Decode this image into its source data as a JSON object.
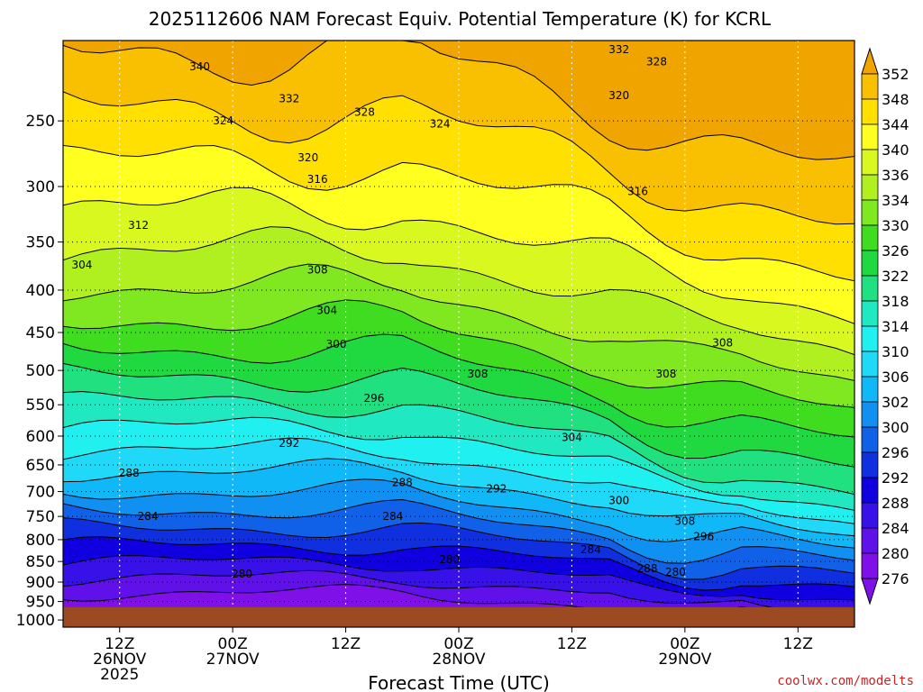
{
  "chart_data": {
    "type": "heatmap",
    "title": "2025112606 NAM Forecast Equiv. Potential Temperature (K) for KCRL",
    "xlabel": "Forecast Time (UTC)",
    "ylabel": "",
    "y_ticks": [
      "250",
      "300",
      "350",
      "400",
      "450",
      "500",
      "550",
      "600",
      "650",
      "700",
      "750",
      "800",
      "850",
      "900",
      "950",
      "1000"
    ],
    "x_ticks": [
      {
        "hour": 6,
        "label": "12Z",
        "date": "26NOV",
        "year": "2025"
      },
      {
        "hour": 18,
        "label": "00Z",
        "date": "27NOV",
        "year": ""
      },
      {
        "hour": 30,
        "label": "12Z",
        "date": "",
        "year": ""
      },
      {
        "hour": 42,
        "label": "00Z",
        "date": "28NOV",
        "year": ""
      },
      {
        "hour": 54,
        "label": "12Z",
        "date": "",
        "year": ""
      },
      {
        "hour": 66,
        "label": "00Z",
        "date": "29NOV",
        "year": ""
      },
      {
        "hour": 78,
        "label": "12Z",
        "date": "",
        "year": ""
      }
    ],
    "xlim": [
      0,
      84
    ],
    "ylim_hpa": [
      1020,
      200
    ],
    "surface_hpa": 965,
    "colorbar": {
      "levels": [
        "352",
        "348",
        "344",
        "340",
        "336",
        "334",
        "330",
        "326",
        "322",
        "318",
        "314",
        "310",
        "306",
        "302",
        "300",
        "296",
        "292",
        "288",
        "284",
        "280",
        "276"
      ],
      "colors": [
        "#f0a400",
        "#f8c000",
        "#ffe000",
        "#ffff20",
        "#d8f820",
        "#b0f020",
        "#80e820",
        "#40dc20",
        "#20d840",
        "#20e080",
        "#20e8c0",
        "#20f0f0",
        "#20d8f8",
        "#10b8f8",
        "#1090f0",
        "#1060e8",
        "#1030e0",
        "#1000e0",
        "#3810e8",
        "#6010e8",
        "#8010e8"
      ]
    },
    "contour_labels": [
      {
        "text": "340",
        "h": 14.5,
        "p": 215
      },
      {
        "text": "332",
        "h": 59,
        "p": 205
      },
      {
        "text": "328",
        "h": 63,
        "p": 212
      },
      {
        "text": "332",
        "h": 24,
        "p": 235
      },
      {
        "text": "328",
        "h": 32,
        "p": 244
      },
      {
        "text": "324",
        "h": 17,
        "p": 250
      },
      {
        "text": "324",
        "h": 40,
        "p": 252
      },
      {
        "text": "320",
        "h": 59,
        "p": 233
      },
      {
        "text": "320",
        "h": 26,
        "p": 277
      },
      {
        "text": "316",
        "h": 27,
        "p": 294
      },
      {
        "text": "316",
        "h": 61,
        "p": 304
      },
      {
        "text": "312",
        "h": 8,
        "p": 334
      },
      {
        "text": "304",
        "h": 2,
        "p": 373
      },
      {
        "text": "308",
        "h": 27,
        "p": 378
      },
      {
        "text": "304",
        "h": 28,
        "p": 423
      },
      {
        "text": "300",
        "h": 29,
        "p": 465
      },
      {
        "text": "308",
        "h": 44,
        "p": 505
      },
      {
        "text": "308",
        "h": 64,
        "p": 505
      },
      {
        "text": "308",
        "h": 70,
        "p": 463
      },
      {
        "text": "296",
        "h": 33,
        "p": 540
      },
      {
        "text": "304",
        "h": 54,
        "p": 602
      },
      {
        "text": "292",
        "h": 24,
        "p": 612
      },
      {
        "text": "288",
        "h": 7,
        "p": 665
      },
      {
        "text": "288",
        "h": 36,
        "p": 683
      },
      {
        "text": "292",
        "h": 46,
        "p": 695
      },
      {
        "text": "300",
        "h": 59,
        "p": 718
      },
      {
        "text": "284",
        "h": 9,
        "p": 750
      },
      {
        "text": "284",
        "h": 35,
        "p": 750
      },
      {
        "text": "308",
        "h": 66,
        "p": 760
      },
      {
        "text": "296",
        "h": 68,
        "p": 793
      },
      {
        "text": "284",
        "h": 56,
        "p": 822
      },
      {
        "text": "280",
        "h": 41,
        "p": 845
      },
      {
        "text": "288",
        "h": 62,
        "p": 867
      },
      {
        "text": "280",
        "h": 65,
        "p": 876
      },
      {
        "text": "280",
        "h": 19,
        "p": 880
      }
    ]
  },
  "watermark": "coolwx.com/modelts"
}
